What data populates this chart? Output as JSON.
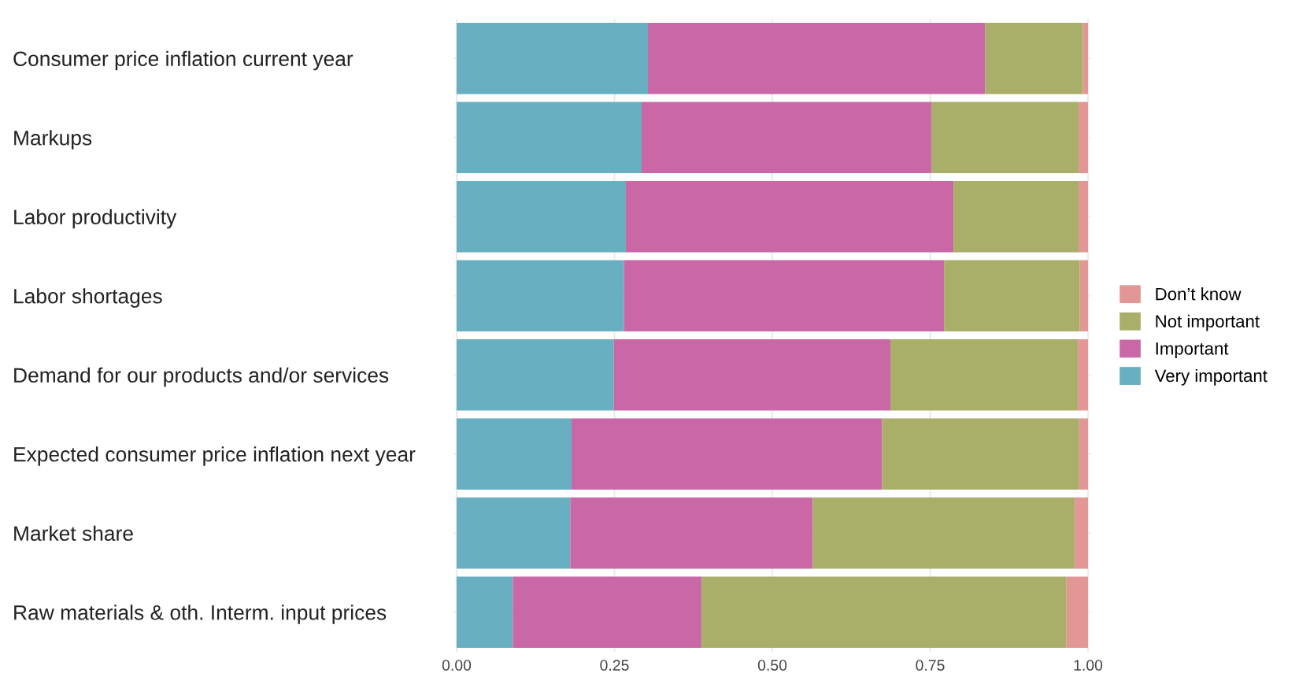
{
  "chart_data": {
    "type": "bar",
    "orientation": "horizontal",
    "stacked": true,
    "categories": [
      "Consumer price inflation current year",
      "Markups",
      "Labor productivity",
      "Labor shortages",
      "Demand for our products and/or services",
      "Expected consumer price inflation next year",
      "Market share",
      "Raw materials & oth. Interm. input prices"
    ],
    "series": [
      {
        "name": "Very important",
        "color": "#67afc1",
        "values": [
          0.303,
          0.293,
          0.268,
          0.265,
          0.249,
          0.182,
          0.18,
          0.089
        ]
      },
      {
        "name": "Important",
        "color": "#c967a7",
        "values": [
          0.534,
          0.459,
          0.519,
          0.507,
          0.438,
          0.492,
          0.384,
          0.299
        ]
      },
      {
        "name": "Not important",
        "color": "#a9ae68",
        "values": [
          0.155,
          0.233,
          0.198,
          0.215,
          0.297,
          0.312,
          0.415,
          0.578
        ]
      },
      {
        "name": "Don’t know",
        "color": "#e29795",
        "values": [
          0.008,
          0.015,
          0.015,
          0.013,
          0.016,
          0.014,
          0.021,
          0.034
        ]
      }
    ],
    "xlim": [
      -0.005,
      1.005
    ],
    "xticks": [
      {
        "value": 0,
        "label": "0.00"
      },
      {
        "value": 0.25,
        "label": "0.25"
      },
      {
        "value": 0.5,
        "label": "0.50"
      },
      {
        "value": 0.75,
        "label": "0.75"
      },
      {
        "value": 1,
        "label": "1.00"
      }
    ],
    "grid": true,
    "legend": "right"
  }
}
